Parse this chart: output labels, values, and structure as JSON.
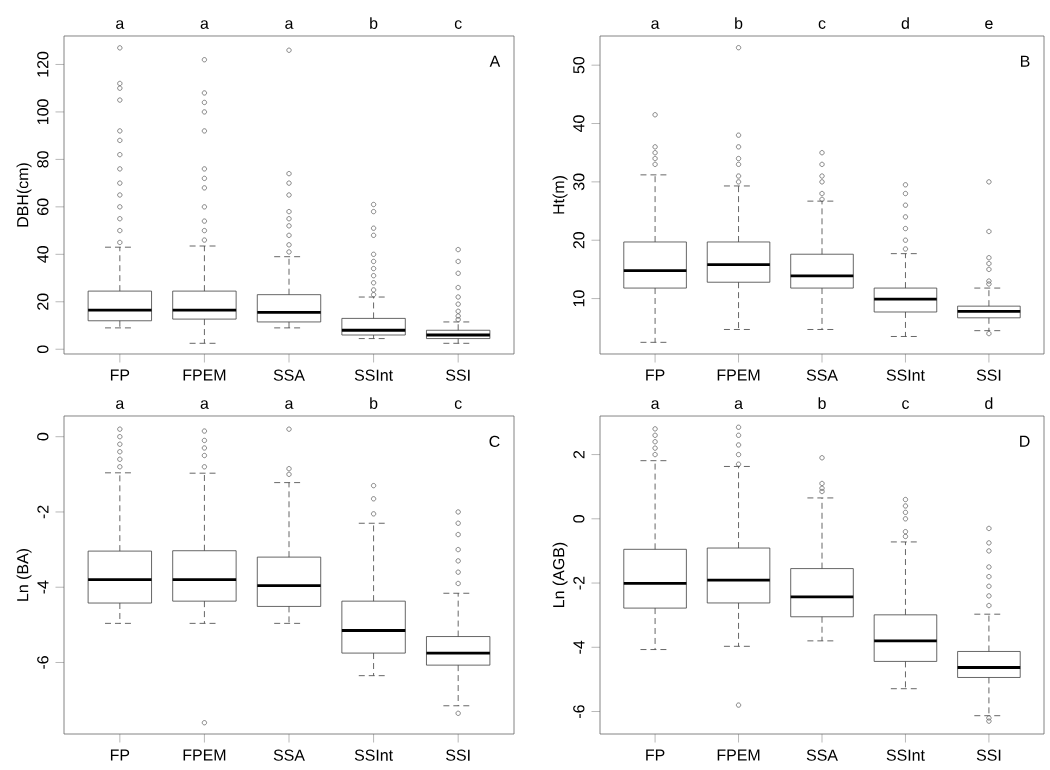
{
  "chart_data": [
    {
      "type": "box",
      "ylabel": "DBH(cm)",
      "categories": [
        "FP",
        "FPEM",
        "SSA",
        "SSInt",
        "SSI"
      ],
      "ylim": [
        -2,
        132
      ],
      "yticks": [
        0,
        20,
        40,
        60,
        80,
        100,
        120
      ],
      "boxes": [
        {
          "low": 9,
          "q1": 12,
          "median": 16.5,
          "q3": 24.5,
          "high": 43,
          "outliers": [
            127,
            112,
            110,
            105,
            92,
            88,
            82,
            76,
            70,
            65,
            60,
            55,
            50,
            45
          ]
        },
        {
          "low": 2.5,
          "q1": 12.7,
          "median": 16.5,
          "q3": 24.5,
          "high": 43.5,
          "outliers": [
            122,
            108,
            104,
            100,
            92,
            76,
            72,
            68,
            60,
            54,
            50,
            46
          ]
        },
        {
          "low": 9,
          "q1": 11.5,
          "median": 15.5,
          "q3": 23,
          "high": 39,
          "outliers": [
            126,
            74,
            70,
            65,
            58,
            55,
            52,
            48,
            44,
            41
          ]
        },
        {
          "low": 4.5,
          "q1": 6,
          "median": 8,
          "q3": 13,
          "high": 22,
          "outliers": [
            61,
            58,
            51,
            48,
            40,
            37,
            34,
            31,
            28,
            25,
            23
          ]
        },
        {
          "low": 2.5,
          "q1": 4.5,
          "median": 6,
          "q3": 8,
          "high": 11.5,
          "outliers": [
            42,
            37,
            32,
            26,
            22,
            19,
            16,
            14,
            12.5
          ]
        }
      ],
      "annotations": [
        "A",
        "a",
        "a",
        "a",
        "b",
        "c"
      ]
    },
    {
      "type": "box",
      "ylabel": "Ht(m)",
      "categories": [
        "FP",
        "FPEM",
        "SSA",
        "SSInt",
        "SSI"
      ],
      "ylim": [
        0.5,
        55
      ],
      "yticks": [
        10,
        20,
        30,
        40,
        50
      ],
      "boxes": [
        {
          "low": 2.5,
          "q1": 11.8,
          "median": 14.8,
          "q3": 19.7,
          "high": 31.2,
          "outliers": [
            41.5,
            36,
            35,
            34,
            33
          ]
        },
        {
          "low": 4.7,
          "q1": 12.8,
          "median": 15.8,
          "q3": 19.7,
          "high": 29.3,
          "outliers": [
            53,
            38,
            36,
            34,
            33,
            31,
            30
          ]
        },
        {
          "low": 4.7,
          "q1": 11.8,
          "median": 13.9,
          "q3": 17.6,
          "high": 26.7,
          "outliers": [
            35,
            33,
            31,
            30,
            28,
            27
          ]
        },
        {
          "low": 3.5,
          "q1": 7.7,
          "median": 9.9,
          "q3": 11.8,
          "high": 17.7,
          "outliers": [
            29.5,
            28,
            26,
            24,
            22,
            20,
            18.5
          ]
        },
        {
          "low": 4.5,
          "q1": 6.7,
          "median": 7.8,
          "q3": 8.7,
          "high": 11.8,
          "outliers": [
            30,
            21.5,
            17,
            16,
            15,
            13,
            12.5,
            4
          ]
        }
      ],
      "annotations": [
        "B",
        "a",
        "b",
        "c",
        "d",
        "e"
      ]
    },
    {
      "type": "box",
      "ylabel": "Ln (BA)",
      "categories": [
        "FP",
        "FPEM",
        "SSA",
        "SSInt",
        "SSI"
      ],
      "ylim": [
        -7.9,
        0.55
      ],
      "yticks": [
        -6,
        -4,
        -2,
        0
      ],
      "boxes": [
        {
          "low": -4.96,
          "q1": -4.42,
          "median": -3.8,
          "q3": -3.04,
          "high": -0.96,
          "outliers": [
            0.2,
            0,
            -0.2,
            -0.4,
            -0.6,
            -0.8
          ]
        },
        {
          "low": -4.96,
          "q1": -4.37,
          "median": -3.8,
          "q3": -3.03,
          "high": -0.97,
          "outliers": [
            0.15,
            -0.1,
            -0.3,
            -0.5,
            -0.8,
            -7.6
          ]
        },
        {
          "low": -4.96,
          "q1": -4.51,
          "median": -3.96,
          "q3": -3.2,
          "high": -1.22,
          "outliers": [
            0.2,
            -0.85,
            -1.0
          ]
        },
        {
          "low": -6.35,
          "q1": -5.75,
          "median": -5.15,
          "q3": -4.37,
          "high": -2.3,
          "outliers": [
            -1.3,
            -1.65,
            -2.05
          ]
        },
        {
          "low": -7.15,
          "q1": -6.07,
          "median": -5.75,
          "q3": -5.31,
          "high": -4.16,
          "outliers": [
            -2.0,
            -2.3,
            -2.6,
            -3.0,
            -3.3,
            -3.6,
            -3.9,
            -7.35
          ]
        }
      ],
      "annotations": [
        "C",
        "a",
        "a",
        "a",
        "b",
        "c"
      ]
    },
    {
      "type": "box",
      "ylabel": "Ln (AGB)",
      "categories": [
        "FP",
        "FPEM",
        "SSA",
        "SSInt",
        "SSI"
      ],
      "ylim": [
        -6.7,
        3.2
      ],
      "yticks": [
        -6,
        -4,
        -2,
        0,
        2
      ],
      "boxes": [
        {
          "low": -4.07,
          "q1": -2.78,
          "median": -2.01,
          "q3": -0.95,
          "high": 1.81,
          "outliers": [
            2.8,
            2.6,
            2.4,
            2.2,
            2.0
          ]
        },
        {
          "low": -3.97,
          "q1": -2.62,
          "median": -1.91,
          "q3": -0.91,
          "high": 1.63,
          "outliers": [
            2.85,
            2.6,
            2.3,
            2.0,
            1.7,
            -5.8
          ]
        },
        {
          "low": -3.8,
          "q1": -3.05,
          "median": -2.43,
          "q3": -1.55,
          "high": 0.65,
          "outliers": [
            1.9,
            1.1,
            0.95,
            0.85
          ]
        },
        {
          "low": -5.29,
          "q1": -4.44,
          "median": -3.8,
          "q3": -2.99,
          "high": -0.72,
          "outliers": [
            0.6,
            0.4,
            0.2,
            0,
            -0.4,
            -0.55
          ]
        },
        {
          "low": -6.13,
          "q1": -4.94,
          "median": -4.63,
          "q3": -4.13,
          "high": -2.97,
          "outliers": [
            -0.3,
            -0.75,
            -1.0,
            -1.5,
            -1.8,
            -2.1,
            -2.4,
            -2.7,
            -6.2,
            -6.3
          ]
        }
      ],
      "annotations": [
        "D",
        "a",
        "a",
        "b",
        "c",
        "d"
      ]
    }
  ]
}
